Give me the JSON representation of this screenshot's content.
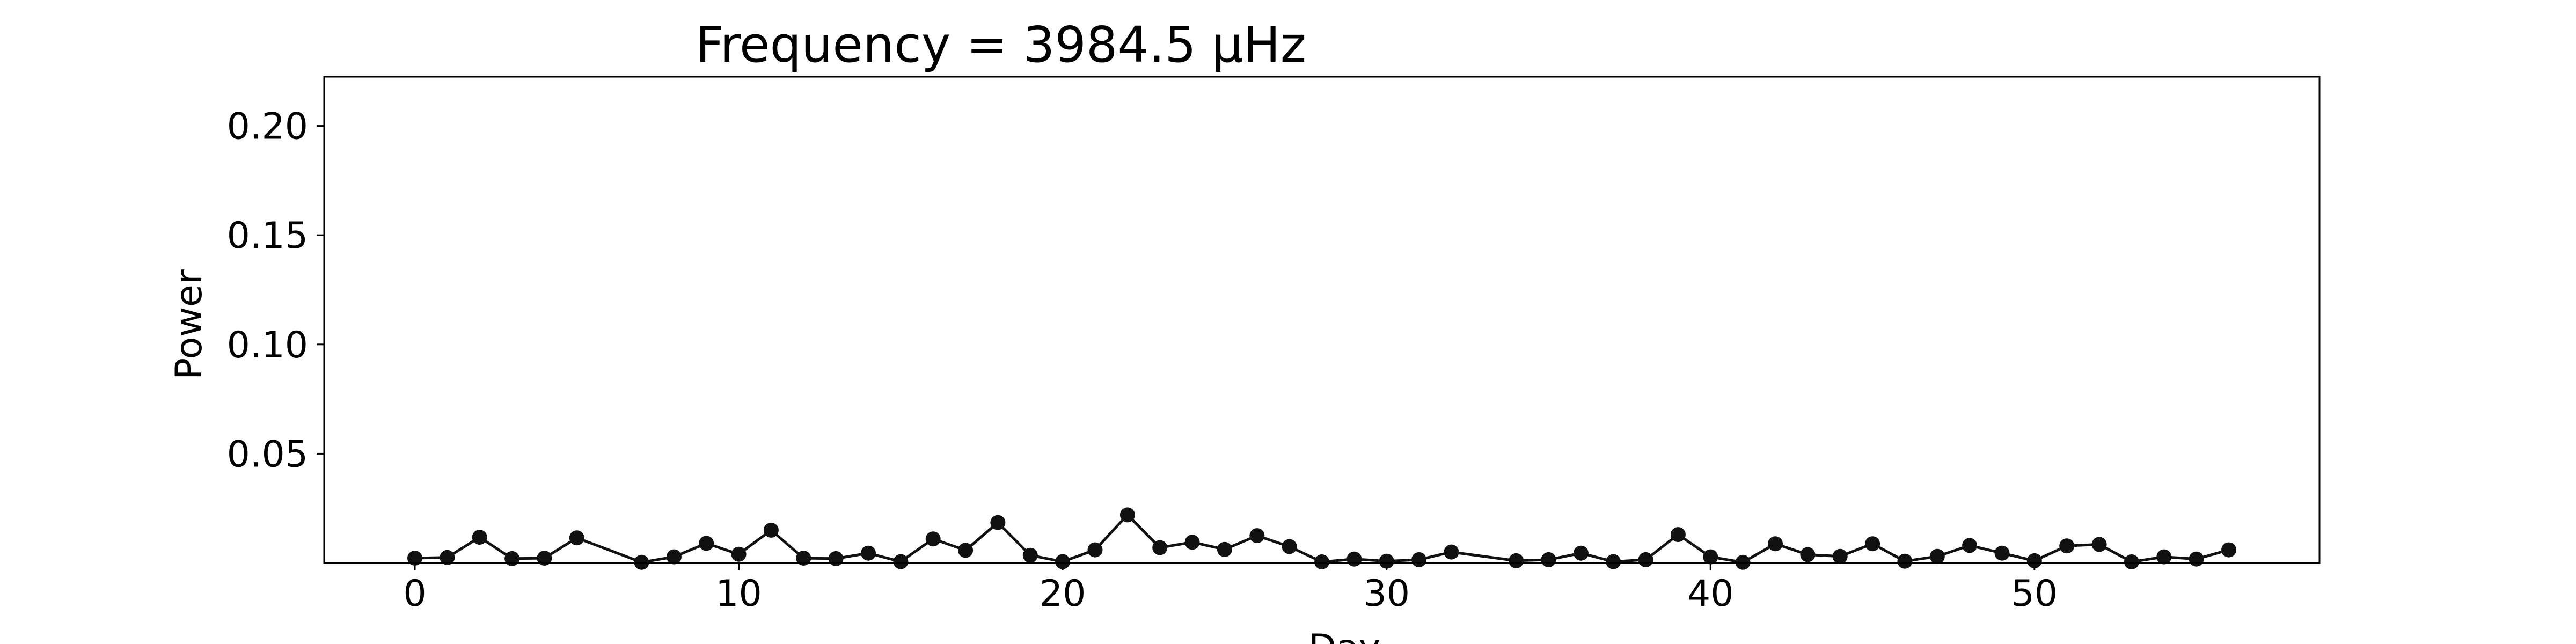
{
  "chart_data": {
    "type": "line",
    "title": "Frequency = 3984.5 μHz",
    "xlabel": "Day",
    "ylabel": "Power",
    "xlim": [
      -2.8,
      58.8
    ],
    "ylim": [
      0,
      0.2225
    ],
    "xticks": [
      0,
      10,
      20,
      30,
      40,
      50
    ],
    "yticks": [
      0.05,
      0.1,
      0.15,
      0.2
    ],
    "xtick_labels": [
      "0",
      "10",
      "20",
      "30",
      "40",
      "50"
    ],
    "ytick_labels": [
      "0.05",
      "0.10",
      "0.15",
      "0.20"
    ],
    "grid": false,
    "series": [
      {
        "color": "#111111",
        "marker": "circle",
        "x": [
          0,
          1,
          2,
          3,
          4,
          5,
          7,
          8,
          9,
          10,
          11,
          12,
          13,
          14,
          15,
          16,
          17,
          18,
          19,
          20,
          21,
          22,
          23,
          24,
          25,
          26,
          27,
          28,
          29,
          30,
          31,
          32,
          34,
          35,
          36,
          37,
          38,
          39,
          40,
          41,
          42,
          43,
          44,
          45,
          46,
          47,
          48,
          49,
          50,
          51,
          52,
          53,
          54,
          55,
          56
        ],
        "y": [
          0.0022,
          0.0025,
          0.0118,
          0.002,
          0.0022,
          0.0115,
          0.0003,
          0.0028,
          0.009,
          0.004,
          0.015,
          0.0022,
          0.002,
          0.0045,
          0.0006,
          0.011,
          0.0058,
          0.0185,
          0.0035,
          0.0006,
          0.006,
          0.022,
          0.007,
          0.0095,
          0.0062,
          0.0125,
          0.0075,
          0.0005,
          0.0018,
          0.0008,
          0.0015,
          0.005,
          0.001,
          0.0015,
          0.0045,
          0.0006,
          0.0015,
          0.013,
          0.0028,
          0.0003,
          0.0088,
          0.0038,
          0.003,
          0.0088,
          0.0008,
          0.003,
          0.008,
          0.0045,
          0.001,
          0.0078,
          0.0085,
          0.0005,
          0.0028,
          0.0018,
          0.006
        ]
      }
    ]
  }
}
